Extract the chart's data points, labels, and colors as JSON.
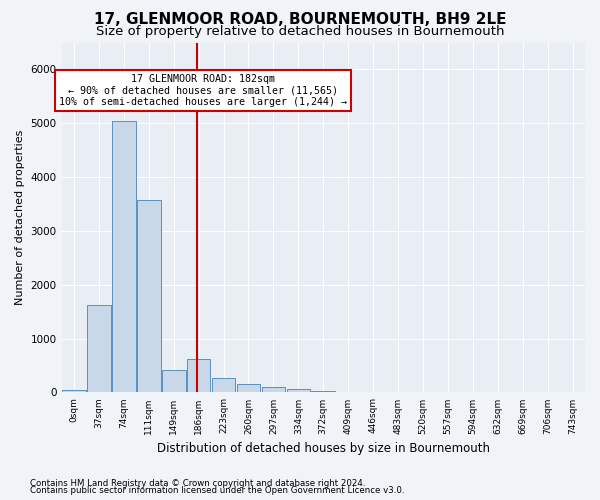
{
  "title": "17, GLENMOOR ROAD, BOURNEMOUTH, BH9 2LE",
  "subtitle": "Size of property relative to detached houses in Bournemouth",
  "xlabel": "Distribution of detached houses by size in Bournemouth",
  "ylabel": "Number of detached properties",
  "footnote1": "Contains HM Land Registry data © Crown copyright and database right 2024.",
  "footnote2": "Contains public sector information licensed under the Open Government Licence v3.0.",
  "bin_labels": [
    "0sqm",
    "37sqm",
    "74sqm",
    "111sqm",
    "149sqm",
    "186sqm",
    "223sqm",
    "260sqm",
    "297sqm",
    "334sqm",
    "372sqm",
    "409sqm",
    "446sqm",
    "483sqm",
    "520sqm",
    "557sqm",
    "594sqm",
    "632sqm",
    "669sqm",
    "706sqm",
    "743sqm"
  ],
  "bar_values": [
    50,
    1620,
    5050,
    3570,
    420,
    630,
    275,
    150,
    110,
    55,
    20,
    5,
    5,
    0,
    0,
    0,
    0,
    0,
    0,
    0,
    0
  ],
  "bar_color": "#c8d8e8",
  "bar_edge_color": "#5a90c0",
  "vline_x": 4.92,
  "vline_color": "#cc0000",
  "annotation_text": "17 GLENMOOR ROAD: 182sqm\n← 90% of detached houses are smaller (11,565)\n10% of semi-detached houses are larger (1,244) →",
  "annotation_box_color": "#ffffff",
  "annotation_box_edge": "#cc0000",
  "ylim": [
    0,
    6500
  ],
  "background_color": "#f0f4f8",
  "plot_bg_color": "#e8eef4",
  "grid_color": "#ffffff",
  "title_fontsize": 11,
  "subtitle_fontsize": 9.5
}
